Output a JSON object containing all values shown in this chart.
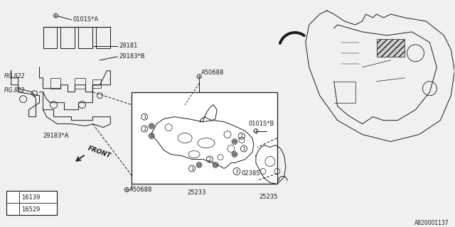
{
  "bg_color": "#f0f0f0",
  "dark": "#1a1a1a",
  "lw": 0.7,
  "fs": 6.0,
  "parts": {
    "0101SA": "0101S*A",
    "29181": "29181",
    "29183B": "29183*B",
    "29183A": "29183*A",
    "A50688_top": "A50688",
    "A50688_bot": "A50688",
    "0238S": "0238S",
    "25233": "25233",
    "0101SB": "0101S*B",
    "25235": "25235",
    "FIG822_top": "FIG.822",
    "FIG822_bot": "FIG.822",
    "ref_num": "A820001137",
    "legend1": "16139",
    "legend2": "16529",
    "front": "FRONT"
  }
}
